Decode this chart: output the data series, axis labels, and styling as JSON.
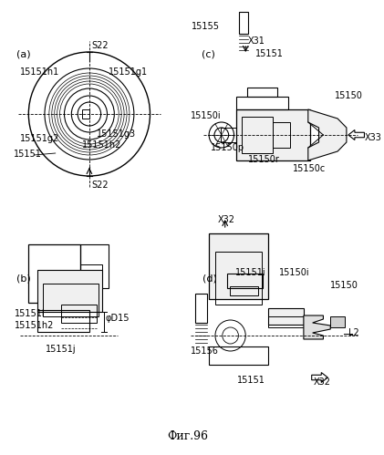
{
  "title": "Фиг.96",
  "bg_color": "#ffffff",
  "line_color": "#000000",
  "label_fontsize": 7,
  "title_fontsize": 9,
  "fig_width": 4.21,
  "fig_height": 4.99,
  "labels": {
    "a": "(a)",
    "b": "(b)",
    "c": "(c)",
    "d": "(d)",
    "s22_top": "S22",
    "s22_bot": "S22",
    "15151_a": "15151",
    "15151h1": "15151h1",
    "15151g1": "15151g1",
    "15151g2": "15151g2",
    "15151h2_a": "15151h2",
    "15151g3": "15151g3",
    "15150i_c": "15150i",
    "15150p": "15150p",
    "15150r": "15150r",
    "15150c": "15150c",
    "15150_c": "15150",
    "15151_c": "15151",
    "15155": "15155",
    "x31": "X31",
    "x32_c": "X32",
    "x33": "X33",
    "15151i_b": "15151i",
    "15151h2_b": "15151h2",
    "15151j": "15151j",
    "phiD15": "φD15",
    "15156": "15156",
    "15151i_d": "15151i",
    "15150i_d": "15150i",
    "15150_d": "15150",
    "15151_d": "15151",
    "l2": "L2",
    "x32_d": "X32"
  }
}
